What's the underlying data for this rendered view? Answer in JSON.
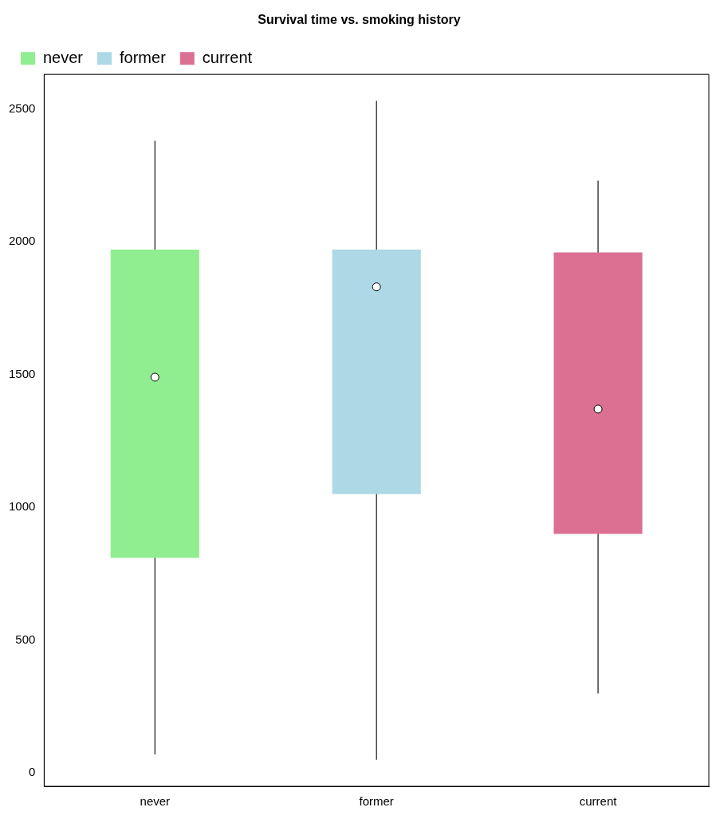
{
  "chart_data": {
    "type": "box",
    "title": "Survival time vs. smoking history",
    "categories": [
      "never",
      "former",
      "current"
    ],
    "series": [
      {
        "name": "never",
        "color": "#90ee90",
        "boxes": [
          {
            "low": 70,
            "q1": 810,
            "median": 1490,
            "q3": 1970,
            "high": 2380
          },
          null,
          null
        ]
      },
      {
        "name": "former",
        "color": "#add8e6",
        "boxes": [
          null,
          {
            "low": 50,
            "q1": 1050,
            "median": 1830,
            "q3": 1970,
            "high": 2530
          },
          null
        ]
      },
      {
        "name": "current",
        "color": "#db7093",
        "boxes": [
          null,
          null,
          {
            "low": 300,
            "q1": 900,
            "median": 1370,
            "q3": 1960,
            "high": 2230
          }
        ]
      }
    ],
    "ylim": [
      -50,
      2630
    ],
    "yticks": [
      0,
      500,
      1000,
      1500,
      2000,
      2500
    ],
    "grid": false,
    "legend": "top left"
  }
}
